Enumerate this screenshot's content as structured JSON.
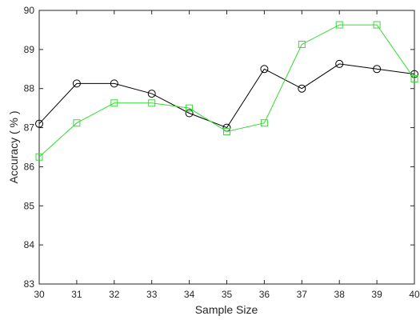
{
  "chart_data": {
    "type": "line",
    "title": "",
    "xlabel": "Sample Size",
    "ylabel": "Accuracy ( % )",
    "xlim": [
      30,
      40
    ],
    "ylim": [
      83,
      90
    ],
    "xticks": [
      30,
      31,
      32,
      33,
      34,
      35,
      36,
      37,
      38,
      39,
      40
    ],
    "yticks": [
      83,
      84,
      85,
      86,
      87,
      88,
      89,
      90
    ],
    "grid": false,
    "x": [
      30,
      31,
      32,
      33,
      34,
      35,
      36,
      37,
      38,
      39,
      40
    ],
    "series": [
      {
        "values": [
          87.1,
          88.13,
          88.13,
          87.87,
          87.37,
          87.0,
          88.5,
          88.0,
          88.63,
          88.5,
          88.37
        ],
        "marker": "circle",
        "color": "#000000"
      },
      {
        "values": [
          86.25,
          87.12,
          87.63,
          87.63,
          87.5,
          86.9,
          87.12,
          89.13,
          89.63,
          89.63,
          88.25
        ],
        "marker": "square",
        "color": "#33dd33"
      }
    ]
  }
}
